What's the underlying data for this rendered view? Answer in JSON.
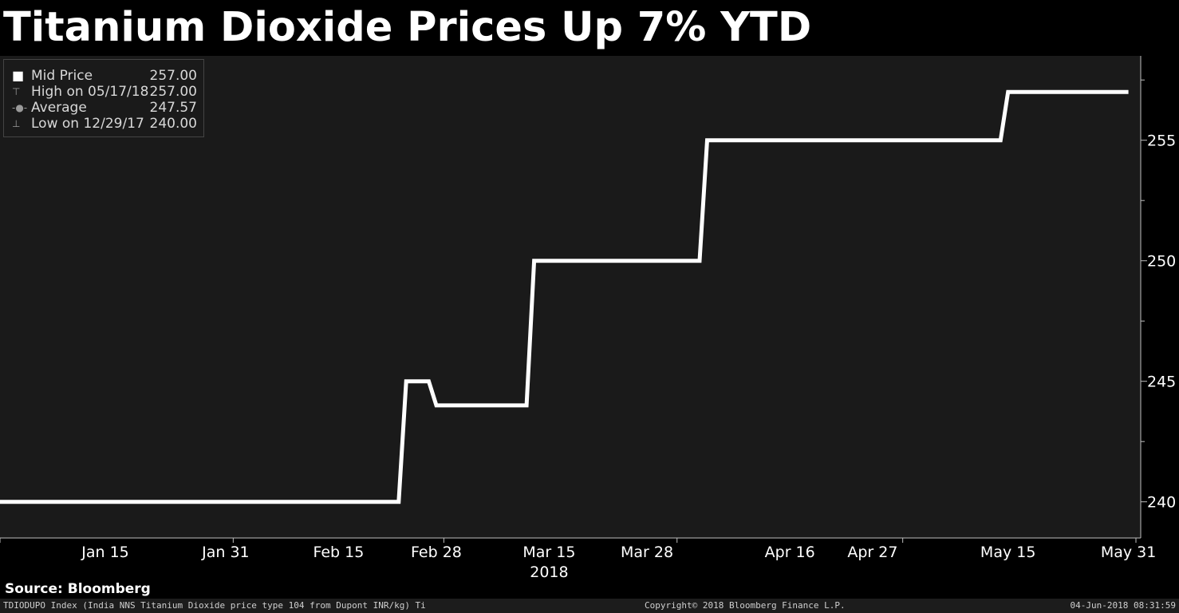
{
  "title": "Titanium Dioxide Prices Up 7% YTD",
  "legend": {
    "items": [
      {
        "label": "Mid Price",
        "value": "257.00"
      },
      {
        "label": "High on 05/17/18",
        "value": "257.00"
      },
      {
        "label": "Average",
        "value": "247.57"
      },
      {
        "label": "Low on 12/29/17",
        "value": "240.00"
      }
    ]
  },
  "source": "Source: Bloomberg",
  "footer": {
    "left": "TDIODUPO Index (India NNS Titanium Dioxide price type 104 from Dupont INR/kg) Ti",
    "center": "Copyright© 2018 Bloomberg Finance L.P.",
    "right": "04-Jun-2018 08:31:59"
  },
  "colors": {
    "background": "#000000",
    "plot_background": "#1a1a1a",
    "line": "#ffffff"
  },
  "chart_data": {
    "type": "line",
    "title": "Titanium Dioxide Prices Up 7% YTD",
    "xlabel": "2018",
    "ylabel": "",
    "x_tick_labels": [
      "Jan 15",
      "Jan 31",
      "Feb 15",
      "Feb 28",
      "Mar 15",
      "Mar 28",
      "Apr 16",
      "Apr 27",
      "May 15",
      "May 31"
    ],
    "x_tick_dates": [
      "2018-01-15",
      "2018-01-31",
      "2018-02-15",
      "2018-02-28",
      "2018-03-15",
      "2018-03-28",
      "2018-04-16",
      "2018-04-27",
      "2018-05-15",
      "2018-05-31"
    ],
    "y_ticks": [
      240,
      245,
      250,
      255
    ],
    "ylim": [
      238.5,
      258.5
    ],
    "xlim": [
      "2018-01-01",
      "2018-06-01"
    ],
    "y_axis_side": "right",
    "grid": false,
    "legend_position": "top-left",
    "series": [
      {
        "name": "Mid Price",
        "points": [
          {
            "x": "2018-01-01",
            "y": 240
          },
          {
            "x": "2018-02-23",
            "y": 240
          },
          {
            "x": "2018-02-24",
            "y": 245
          },
          {
            "x": "2018-02-27",
            "y": 245
          },
          {
            "x": "2018-02-28",
            "y": 244
          },
          {
            "x": "2018-03-12",
            "y": 244
          },
          {
            "x": "2018-03-13",
            "y": 250
          },
          {
            "x": "2018-04-04",
            "y": 250
          },
          {
            "x": "2018-04-05",
            "y": 255
          },
          {
            "x": "2018-05-14",
            "y": 255
          },
          {
            "x": "2018-05-15",
            "y": 257
          },
          {
            "x": "2018-05-31",
            "y": 257
          }
        ]
      }
    ]
  }
}
